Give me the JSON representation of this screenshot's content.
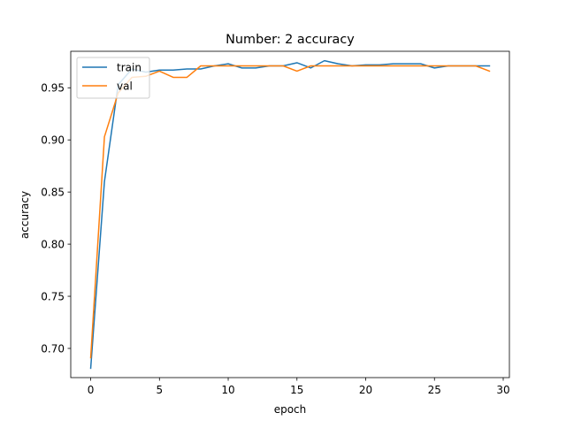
{
  "chart_data": {
    "type": "line",
    "title": "Number: 2 accuracy",
    "xlabel": "epoch",
    "ylabel": "accuracy",
    "xlim": [
      -1.45,
      30.45
    ],
    "ylim": [
      0.672,
      0.985
    ],
    "xticks": [
      0,
      5,
      10,
      15,
      20,
      25,
      30
    ],
    "yticks": [
      0.7,
      0.75,
      0.8,
      0.85,
      0.9,
      0.95
    ],
    "grid": false,
    "legend_position": "top-left",
    "x": [
      0,
      1,
      2,
      3,
      4,
      5,
      6,
      7,
      8,
      9,
      10,
      11,
      12,
      13,
      14,
      15,
      16,
      17,
      18,
      19,
      20,
      21,
      22,
      23,
      24,
      25,
      26,
      27,
      28,
      29
    ],
    "series": [
      {
        "name": "train",
        "color": "#1f77b4",
        "values": [
          0.681,
          0.86,
          0.953,
          0.968,
          0.965,
          0.967,
          0.967,
          0.968,
          0.968,
          0.971,
          0.973,
          0.969,
          0.969,
          0.971,
          0.971,
          0.974,
          0.969,
          0.976,
          0.973,
          0.971,
          0.972,
          0.972,
          0.973,
          0.973,
          0.973,
          0.969,
          0.971,
          0.971,
          0.971,
          0.971
        ]
      },
      {
        "name": "val",
        "color": "#ff7f0e",
        "values": [
          0.691,
          0.903,
          0.945,
          0.96,
          0.961,
          0.966,
          0.96,
          0.96,
          0.971,
          0.971,
          0.971,
          0.971,
          0.971,
          0.971,
          0.971,
          0.966,
          0.971,
          0.971,
          0.971,
          0.971,
          0.971,
          0.971,
          0.971,
          0.971,
          0.971,
          0.971,
          0.971,
          0.971,
          0.971,
          0.966
        ]
      }
    ]
  }
}
